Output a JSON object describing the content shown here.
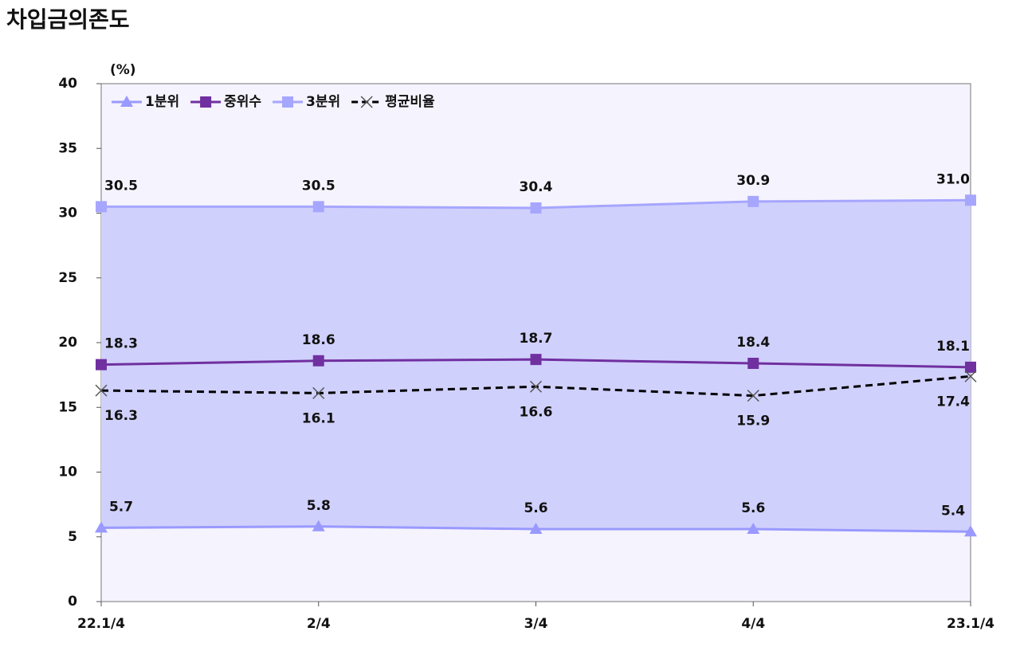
{
  "chart_data": {
    "type": "line",
    "title": "차입금의존도",
    "y_label": "(%)",
    "categories": [
      "22.1/4",
      "2/4",
      "3/4",
      "4/4",
      "23.1/4"
    ],
    "series": [
      {
        "name": "1분위",
        "color": "#9999ff",
        "marker": "triangle",
        "dash": false,
        "label_side": "above",
        "values": [
          5.7,
          5.8,
          5.6,
          5.6,
          5.4
        ]
      },
      {
        "name": "중위수",
        "color": "#7030a0",
        "marker": "square",
        "dash": false,
        "label_side": "above",
        "values": [
          18.3,
          18.6,
          18.7,
          18.4,
          18.1
        ]
      },
      {
        "name": "3분위",
        "color": "#a6a6ff",
        "marker": "square",
        "dash": false,
        "label_side": "above",
        "values": [
          30.5,
          30.5,
          30.4,
          30.9,
          31.0
        ],
        "value_labels": [
          "30.5",
          "30.5",
          "30.4",
          "30.9",
          "31.0"
        ]
      },
      {
        "name": "평균비율",
        "color": "#000000",
        "marker": "x",
        "dash": true,
        "label_side": "below",
        "values": [
          16.3,
          16.1,
          16.6,
          15.9,
          17.4
        ]
      }
    ],
    "band": {
      "between": [
        0,
        2
      ],
      "color": "#d0d0fc"
    },
    "plot_background": "#f5f3fd",
    "ylim": [
      0,
      40
    ],
    "yticks": [
      0,
      5,
      10,
      15,
      20,
      25,
      30,
      35,
      40
    ],
    "legend": "top-left"
  }
}
